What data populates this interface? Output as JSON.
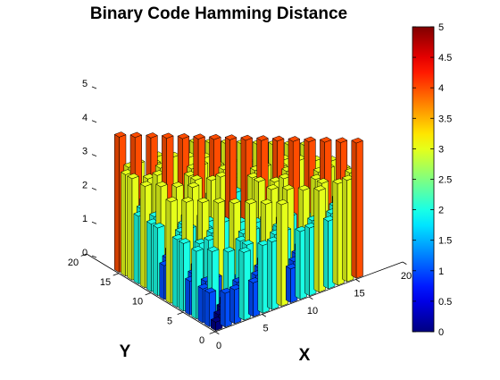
{
  "chart_data": {
    "type": "bar3d",
    "title": "Binary Code Hamming Distance",
    "xlabel": "X",
    "ylabel": "Y",
    "zlabel": "",
    "xlim": [
      0,
      20
    ],
    "ylim": [
      0,
      20
    ],
    "zlim": [
      0,
      5
    ],
    "x_ticks": [
      "0",
      "5",
      "10",
      "15",
      "20"
    ],
    "y_ticks": [
      "0",
      "5",
      "10",
      "15",
      "20"
    ],
    "z_ticks": [
      "0",
      "1",
      "2",
      "3",
      "4",
      "5"
    ],
    "colormap": "jet",
    "colorbar": {
      "range": [
        0,
        5
      ],
      "ticks": [
        "0",
        "0.5",
        "1",
        "1.5",
        "2",
        "2.5",
        "3",
        "3.5",
        "4",
        "4.5",
        "5"
      ]
    },
    "grid": false,
    "grid_size": 16,
    "values_note_rows": "z[i][j]: i = X index 0..15, j = Y index 0..15",
    "z": [
      [
        0,
        1,
        1,
        2,
        1,
        2,
        2,
        3,
        1,
        2,
        2,
        3,
        2,
        3,
        3,
        4
      ],
      [
        1,
        0,
        2,
        1,
        2,
        1,
        3,
        2,
        2,
        1,
        3,
        2,
        3,
        2,
        4,
        3
      ],
      [
        1,
        2,
        0,
        1,
        2,
        3,
        1,
        2,
        2,
        3,
        1,
        2,
        3,
        4,
        2,
        3
      ],
      [
        2,
        1,
        1,
        0,
        3,
        2,
        2,
        1,
        3,
        2,
        2,
        1,
        4,
        3,
        3,
        2
      ],
      [
        1,
        2,
        2,
        3,
        0,
        1,
        1,
        2,
        2,
        3,
        3,
        4,
        1,
        2,
        2,
        3
      ],
      [
        2,
        1,
        3,
        2,
        1,
        0,
        2,
        1,
        3,
        2,
        4,
        3,
        2,
        1,
        3,
        2
      ],
      [
        2,
        3,
        1,
        2,
        1,
        2,
        0,
        1,
        3,
        4,
        2,
        3,
        2,
        3,
        1,
        2
      ],
      [
        3,
        2,
        2,
        1,
        2,
        1,
        1,
        0,
        4,
        3,
        3,
        2,
        3,
        2,
        2,
        1
      ],
      [
        1,
        2,
        2,
        3,
        2,
        3,
        3,
        4,
        0,
        1,
        1,
        2,
        1,
        2,
        2,
        3
      ],
      [
        2,
        1,
        3,
        2,
        3,
        2,
        4,
        3,
        1,
        0,
        2,
        1,
        2,
        1,
        3,
        2
      ],
      [
        2,
        3,
        1,
        2,
        3,
        4,
        2,
        3,
        1,
        2,
        0,
        1,
        2,
        3,
        1,
        2
      ],
      [
        3,
        2,
        2,
        1,
        4,
        3,
        3,
        2,
        2,
        1,
        1,
        0,
        3,
        2,
        2,
        1
      ],
      [
        2,
        3,
        3,
        4,
        1,
        2,
        2,
        3,
        1,
        2,
        2,
        3,
        0,
        1,
        1,
        2
      ],
      [
        3,
        2,
        4,
        3,
        2,
        1,
        3,
        2,
        2,
        1,
        3,
        2,
        1,
        0,
        2,
        1
      ],
      [
        3,
        4,
        2,
        3,
        2,
        3,
        1,
        2,
        2,
        3,
        1,
        2,
        1,
        2,
        0,
        1
      ],
      [
        4,
        3,
        3,
        2,
        3,
        2,
        2,
        1,
        3,
        2,
        2,
        1,
        2,
        1,
        1,
        0
      ]
    ]
  }
}
